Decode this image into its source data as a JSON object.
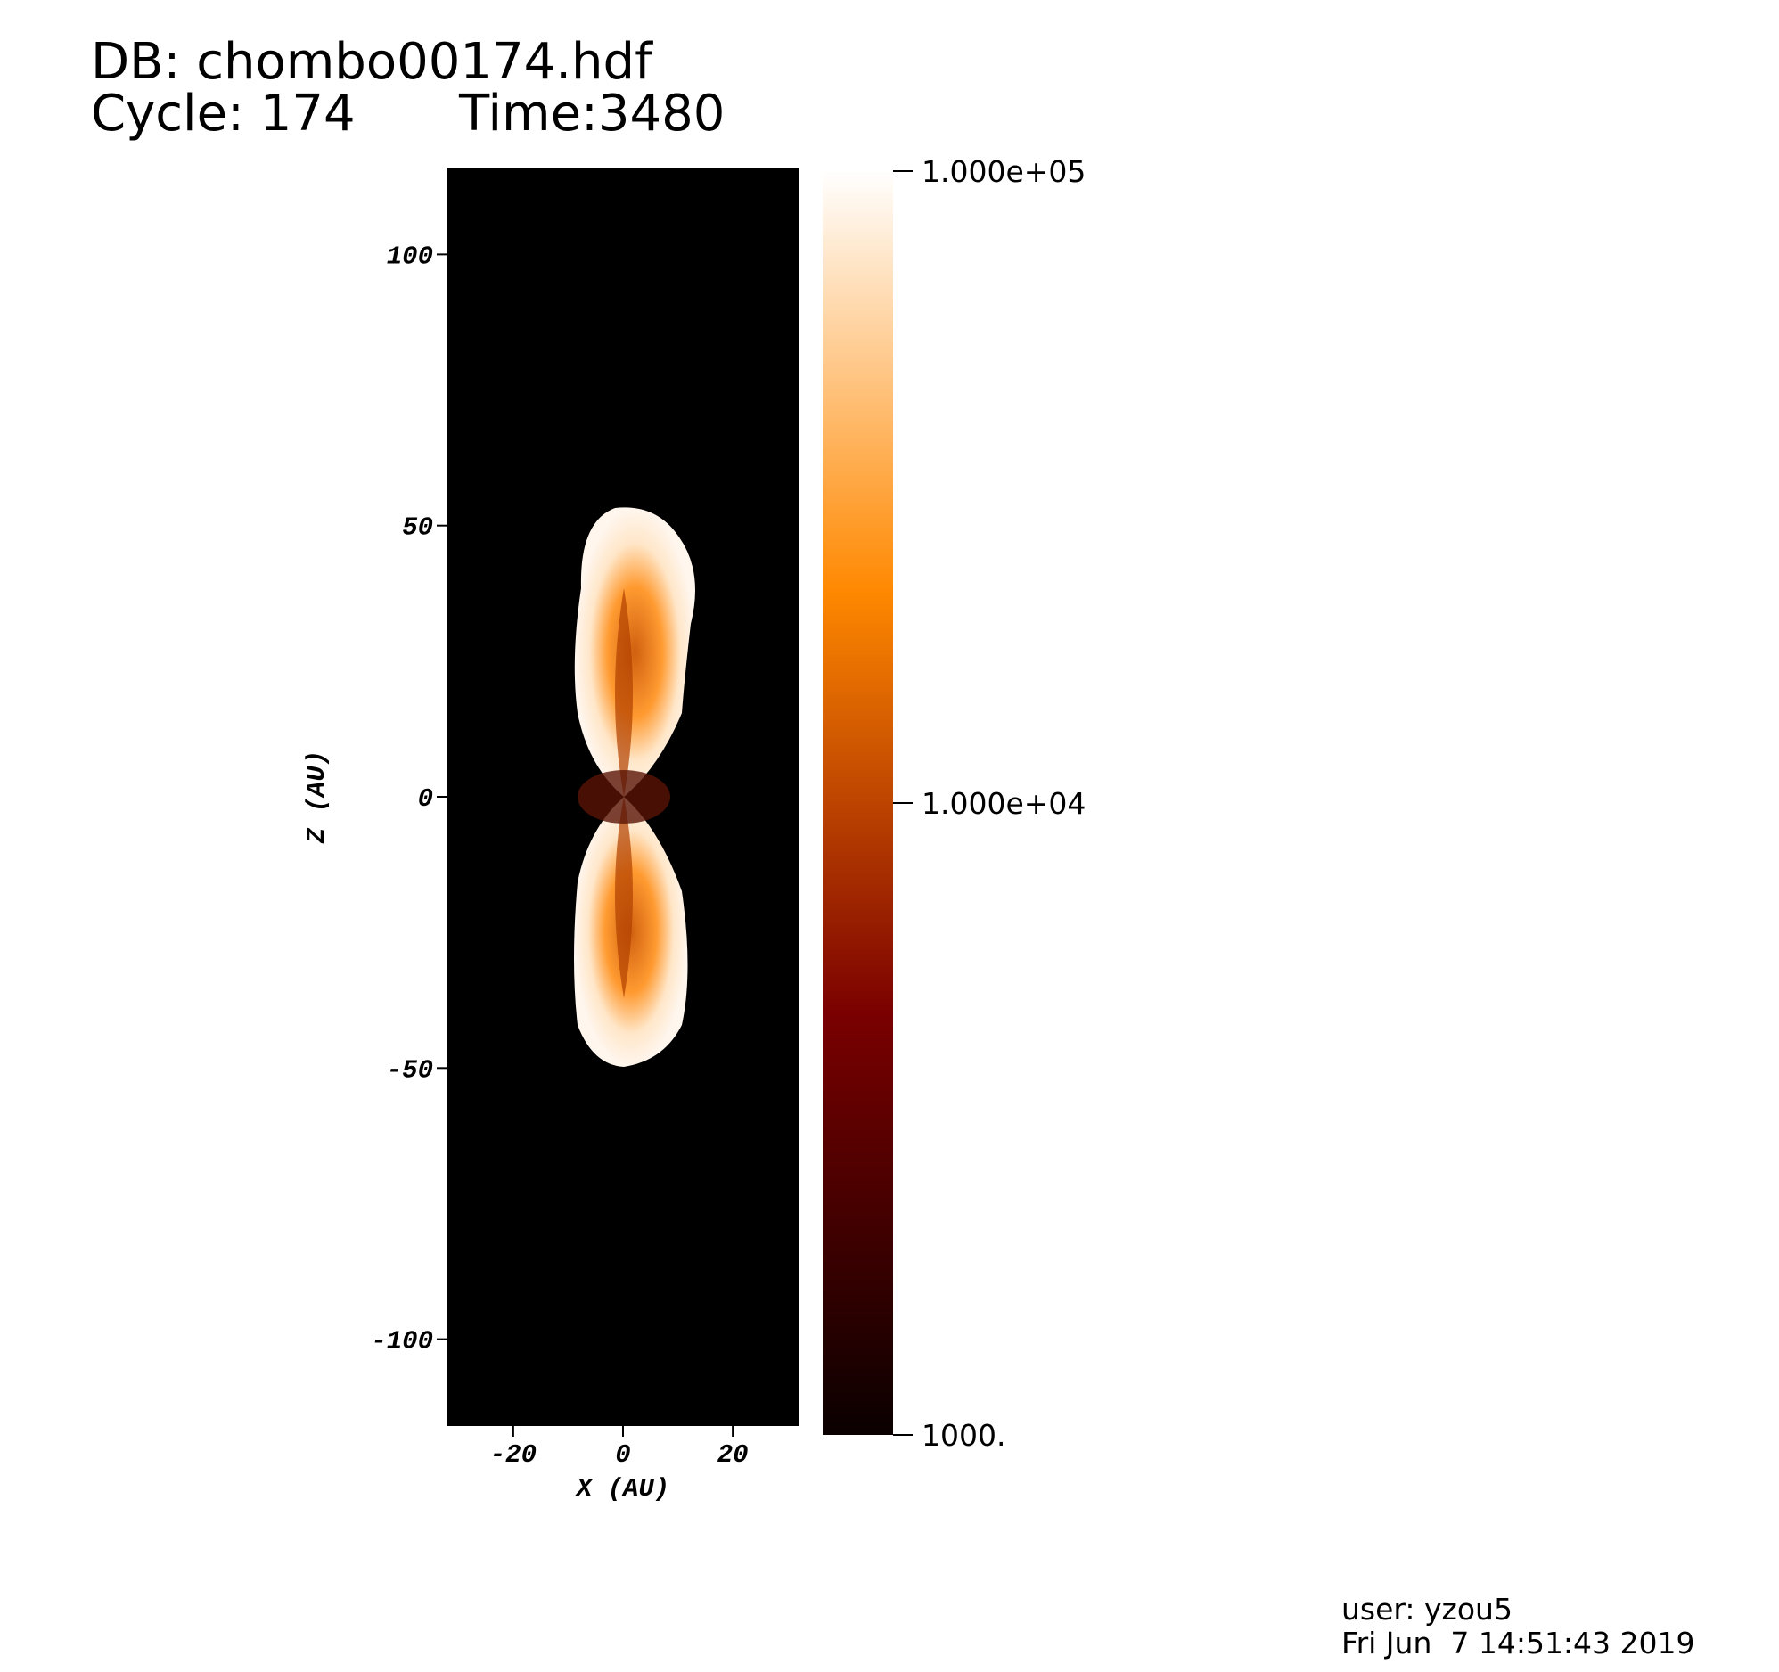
{
  "chart_data": {
    "type": "pseudocolor",
    "title_lines": [
      "DB: chombo00174.hdf",
      "Cycle: 174",
      "Time:3480"
    ],
    "xlabel": "X (AU)",
    "ylabel": "Z (AU)",
    "xlim": [
      -32,
      32
    ],
    "xticks": [
      -20,
      0,
      20
    ],
    "ylim": [
      -116,
      116
    ],
    "yticks": [
      -100,
      -50,
      0,
      50,
      100
    ],
    "colorbar": {
      "scale": "log",
      "lim": [
        1000,
        100000
      ],
      "ticks": [
        {
          "value": 100000,
          "label": "1.000e+05"
        },
        {
          "value": 10000,
          "label": "1.000e+04"
        },
        {
          "value": 1000,
          "label": "1000."
        }
      ],
      "colors": [
        "#0a0000",
        "#7a0000",
        "#ff8800",
        "#ffffff"
      ]
    },
    "footer": [
      "user: yzou5",
      "Fri Jun  7 14:51:43 2019"
    ]
  }
}
